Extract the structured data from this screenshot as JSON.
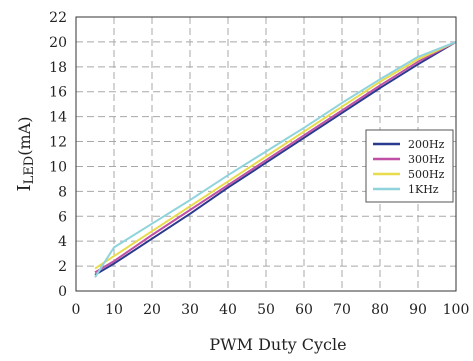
{
  "chart_data": {
    "type": "line",
    "title": "",
    "xlabel": "PWM Duty Cycle",
    "ylabel": {
      "main": "I",
      "sub": "LED",
      "rest": "(mA)"
    },
    "xlim": [
      0,
      100
    ],
    "ylim": [
      0,
      22
    ],
    "xticks": [
      "0",
      "10",
      "20",
      "30",
      "40",
      "50",
      "60",
      "70",
      "80",
      "90",
      "100"
    ],
    "yticks": [
      "0",
      "2",
      "4",
      "6",
      "8",
      "10",
      "12",
      "14",
      "16",
      "18",
      "20",
      "22"
    ],
    "grid": true,
    "grid_style": "dashed",
    "legend_position": "right",
    "series": [
      {
        "name": "200Hz",
        "color": "#2b3a8f",
        "x": [
          5,
          10,
          20,
          30,
          40,
          50,
          60,
          70,
          80,
          90,
          100
        ],
        "y": [
          1.3,
          2.2,
          4.2,
          6.2,
          8.3,
          10.3,
          12.3,
          14.3,
          16.3,
          18.2,
          20.0
        ]
      },
      {
        "name": "300Hz",
        "color": "#c04fa6",
        "x": [
          5,
          10,
          20,
          30,
          40,
          50,
          60,
          70,
          80,
          90,
          100
        ],
        "y": [
          1.5,
          2.4,
          4.5,
          6.5,
          8.5,
          10.5,
          12.5,
          14.5,
          16.5,
          18.4,
          20.0
        ]
      },
      {
        "name": "500Hz",
        "color": "#e8dc4c",
        "x": [
          5,
          10,
          20,
          30,
          40,
          50,
          60,
          70,
          80,
          90,
          100
        ],
        "y": [
          1.8,
          2.8,
          4.8,
          6.8,
          8.8,
          10.8,
          12.8,
          14.8,
          16.8,
          18.6,
          20.0
        ]
      },
      {
        "name": "1KHz",
        "color": "#8fd3dd",
        "x": [
          5,
          10,
          20,
          30,
          40,
          50,
          60,
          70,
          80,
          90,
          100
        ],
        "y": [
          1.1,
          3.5,
          5.4,
          7.3,
          9.3,
          11.2,
          13.1,
          15.1,
          17.0,
          18.8,
          20.0
        ]
      }
    ]
  }
}
